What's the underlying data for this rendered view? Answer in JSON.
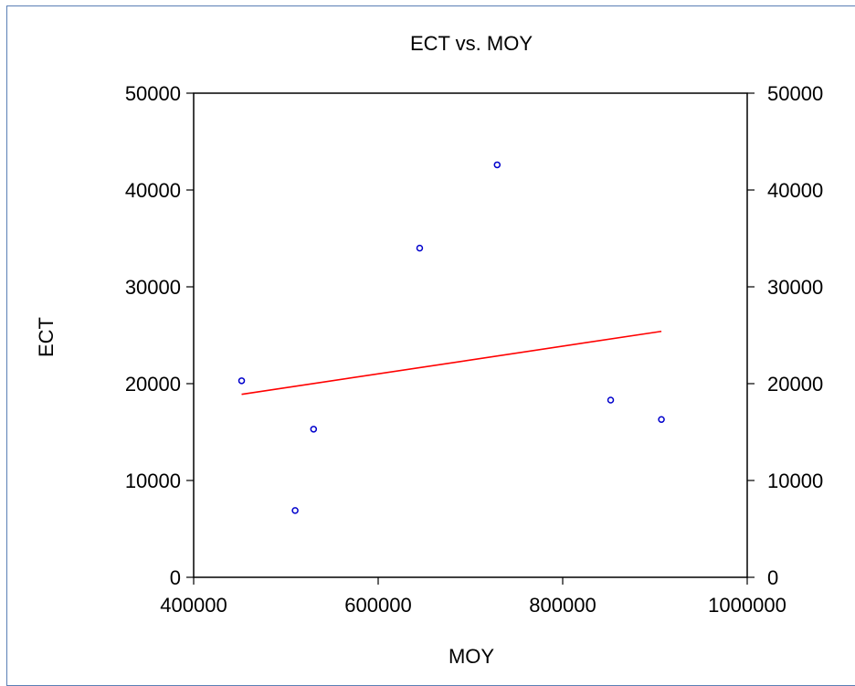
{
  "chart_data": {
    "type": "scatter",
    "title": "ECT vs. MOY",
    "xlabel": "MOY",
    "ylabel": "ECT",
    "xlim": [
      400000,
      1000000
    ],
    "ylim": [
      0,
      50000
    ],
    "x_ticks": [
      400000,
      600000,
      800000,
      1000000
    ],
    "x_tick_labels": [
      "400000",
      "600000",
      "800000",
      "1000000"
    ],
    "y_ticks": [
      0,
      10000,
      20000,
      30000,
      40000,
      50000
    ],
    "y_tick_labels": [
      "0",
      "10000",
      "20000",
      "30000",
      "40000",
      "50000"
    ],
    "right_y_ticks": [
      0,
      10000,
      20000,
      30000,
      40000,
      50000
    ],
    "right_y_tick_labels": [
      "0",
      "10000",
      "20000",
      "30000",
      "40000",
      "50000"
    ],
    "grid": false,
    "series": [
      {
        "type": "scatter",
        "color": "#0000cc",
        "points": [
          {
            "x": 452000,
            "y": 20300
          },
          {
            "x": 510000,
            "y": 6900
          },
          {
            "x": 530000,
            "y": 15300
          },
          {
            "x": 645000,
            "y": 34000
          },
          {
            "x": 729000,
            "y": 42600
          },
          {
            "x": 852000,
            "y": 18300
          },
          {
            "x": 907000,
            "y": 16300
          }
        ]
      },
      {
        "type": "line",
        "color": "#ff0000",
        "points": [
          {
            "x": 452000,
            "y": 18900
          },
          {
            "x": 907000,
            "y": 25400
          }
        ]
      }
    ]
  }
}
